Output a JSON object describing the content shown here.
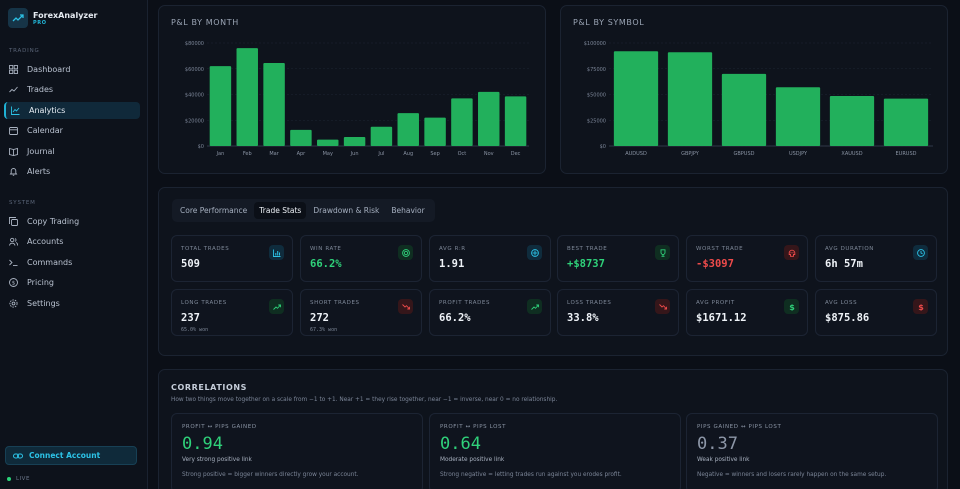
{
  "brand": {
    "name": "ForexAnalyzer",
    "tier": "PRO"
  },
  "sidebar": {
    "trading_label": "TRADING",
    "system_label": "SYSTEM",
    "trading_items": [
      {
        "label": "Dashboard",
        "icon": "grid-icon"
      },
      {
        "label": "Trades",
        "icon": "trend-icon"
      },
      {
        "label": "Analytics",
        "icon": "chart-icon",
        "active": true
      },
      {
        "label": "Calendar",
        "icon": "calendar-icon"
      },
      {
        "label": "Journal",
        "icon": "book-icon"
      },
      {
        "label": "Alerts",
        "icon": "bell-icon"
      }
    ],
    "system_items": [
      {
        "label": "Copy Trading",
        "icon": "copy-icon"
      },
      {
        "label": "Accounts",
        "icon": "users-icon"
      },
      {
        "label": "Commands",
        "icon": "terminal-icon"
      },
      {
        "label": "Pricing",
        "icon": "tag-icon"
      },
      {
        "label": "Settings",
        "icon": "gear-icon"
      }
    ],
    "connect_label": "Connect Account",
    "live_label": "LIVE"
  },
  "colors": {
    "accent": "#1fb1d4",
    "bar": "#22b05c",
    "positive": "#2fd17a",
    "negative": "#ee4b4b"
  },
  "chart_data": [
    {
      "type": "bar",
      "title": "P&L BY MONTH",
      "categories": [
        "Jan",
        "Feb",
        "Mar",
        "Apr",
        "May",
        "Jun",
        "Jul",
        "Aug",
        "Sep",
        "Oct",
        "Nov",
        "Dec"
      ],
      "values": [
        62000,
        76000,
        64500,
        12500,
        5000,
        7000,
        15000,
        25500,
        22000,
        37000,
        42000,
        38500
      ],
      "yticks": [
        "$0",
        "$20000",
        "$40000",
        "$60000",
        "$80000"
      ],
      "ylim": [
        0,
        80000
      ]
    },
    {
      "type": "bar",
      "title": "P&L BY SYMBOL",
      "categories": [
        "AUDUSD",
        "GBPJPY",
        "GBPUSD",
        "USDJPY",
        "XAUUSD",
        "EURUSD"
      ],
      "values": [
        92000,
        91000,
        70000,
        57000,
        48500,
        46000
      ],
      "yticks": [
        "$0",
        "$25000",
        "$50000",
        "$75000",
        "$100000"
      ],
      "ylim": [
        0,
        100000
      ]
    }
  ],
  "tabs": [
    "Core Performance",
    "Trade Stats",
    "Drawdown & Risk",
    "Behavior"
  ],
  "active_tab": 1,
  "stats": [
    {
      "label": "TOTAL TRADES",
      "value": "509",
      "icon": "bar-chart-icon",
      "tone": "blue",
      "sub": ""
    },
    {
      "label": "WIN RATE",
      "value": "66.2%",
      "icon": "target-icon",
      "tone": "green",
      "vtone": "pos",
      "sub": ""
    },
    {
      "label": "AVG R:R",
      "value": "1.91",
      "icon": "scale-icon",
      "tone": "blue",
      "sub": ""
    },
    {
      "label": "BEST TRADE",
      "value": "+$8737",
      "icon": "trophy-icon",
      "tone": "green",
      "vtone": "pos",
      "sub": ""
    },
    {
      "label": "WORST TRADE",
      "value": "-$3097",
      "icon": "skull-icon",
      "tone": "red",
      "vtone": "neg",
      "sub": ""
    },
    {
      "label": "AVG DURATION",
      "value": "6h 57m",
      "icon": "clock-icon",
      "tone": "blue",
      "sub": ""
    },
    {
      "label": "LONG TRADES",
      "value": "237",
      "icon": "trend-up-icon",
      "tone": "green",
      "sub": "65.0% won"
    },
    {
      "label": "SHORT TRADES",
      "value": "272",
      "icon": "trend-down-icon",
      "tone": "red",
      "sub": "67.3% won"
    },
    {
      "label": "PROFIT TRADES",
      "value": "66.2%",
      "icon": "trend-up-icon",
      "tone": "green",
      "sub": ""
    },
    {
      "label": "LOSS TRADES",
      "value": "33.8%",
      "icon": "trend-down-icon",
      "tone": "red",
      "sub": ""
    },
    {
      "label": "AVG PROFIT",
      "value": "$1671.12",
      "icon": "dollar-icon",
      "tone": "green",
      "sub": ""
    },
    {
      "label": "AVG LOSS",
      "value": "$875.86",
      "icon": "dollar-icon",
      "tone": "red",
      "sub": ""
    }
  ],
  "correlations": {
    "title": "CORRELATIONS",
    "description": "How two things move together on a scale from −1 to +1. Near +1 = they rise together, near −1 = inverse, near 0 = no relationship.",
    "cards": [
      {
        "label": "PROFIT ↔ PIPS GAINED",
        "value": "0.94",
        "strength": "Very strong positive link",
        "note": "Strong positive = bigger winners directly grow your account.",
        "tone": "green"
      },
      {
        "label": "PROFIT ↔ PIPS LOST",
        "value": "0.64",
        "strength": "Moderate positive link",
        "note": "Strong negative = letting trades run against you erodes profit.",
        "tone": "green"
      },
      {
        "label": "PIPS GAINED ↔ PIPS LOST",
        "value": "0.37",
        "strength": "Weak positive link",
        "note": "Negative = winners and losers rarely happen on the same setup.",
        "tone": "gray"
      }
    ]
  }
}
